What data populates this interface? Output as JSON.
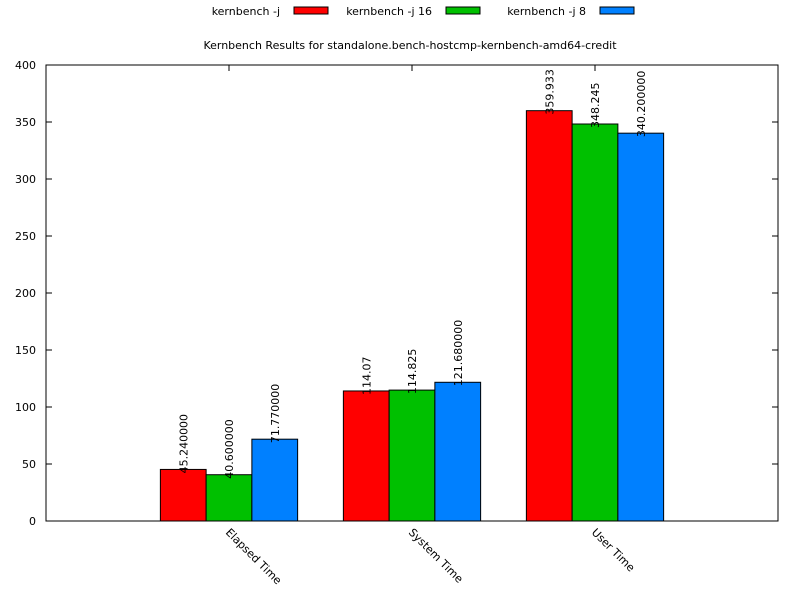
{
  "chart_data": {
    "type": "bar",
    "title": "Kernbench Results for standalone.bench-hostcmp-kernbench-amd64-credit",
    "xlabel": "",
    "ylabel": "",
    "ylim": [
      0,
      400
    ],
    "yticks": [
      "0",
      "50",
      "100",
      "150",
      "200",
      "250",
      "300",
      "350",
      "400"
    ],
    "categories": [
      "Elapsed Time",
      "System Time",
      "User Time"
    ],
    "legend_placement": "top",
    "grid": false,
    "series": [
      {
        "name": "kernbench -j",
        "color": "#ff0000",
        "values": [
          45.24,
          114.07,
          359.933
        ],
        "labels": [
          "45.240000",
          "114.07",
          "359.933"
        ]
      },
      {
        "name": "kernbench -j 16",
        "color": "#00c000",
        "values": [
          40.6,
          114.825,
          348.245
        ],
        "labels": [
          "40.600000",
          "114.825",
          "348.245"
        ]
      },
      {
        "name": "kernbench -j 8",
        "color": "#0080ff",
        "values": [
          71.77,
          121.68,
          340.2
        ],
        "labels": [
          "71.770000",
          "121.680000",
          "340.200000"
        ]
      }
    ]
  }
}
